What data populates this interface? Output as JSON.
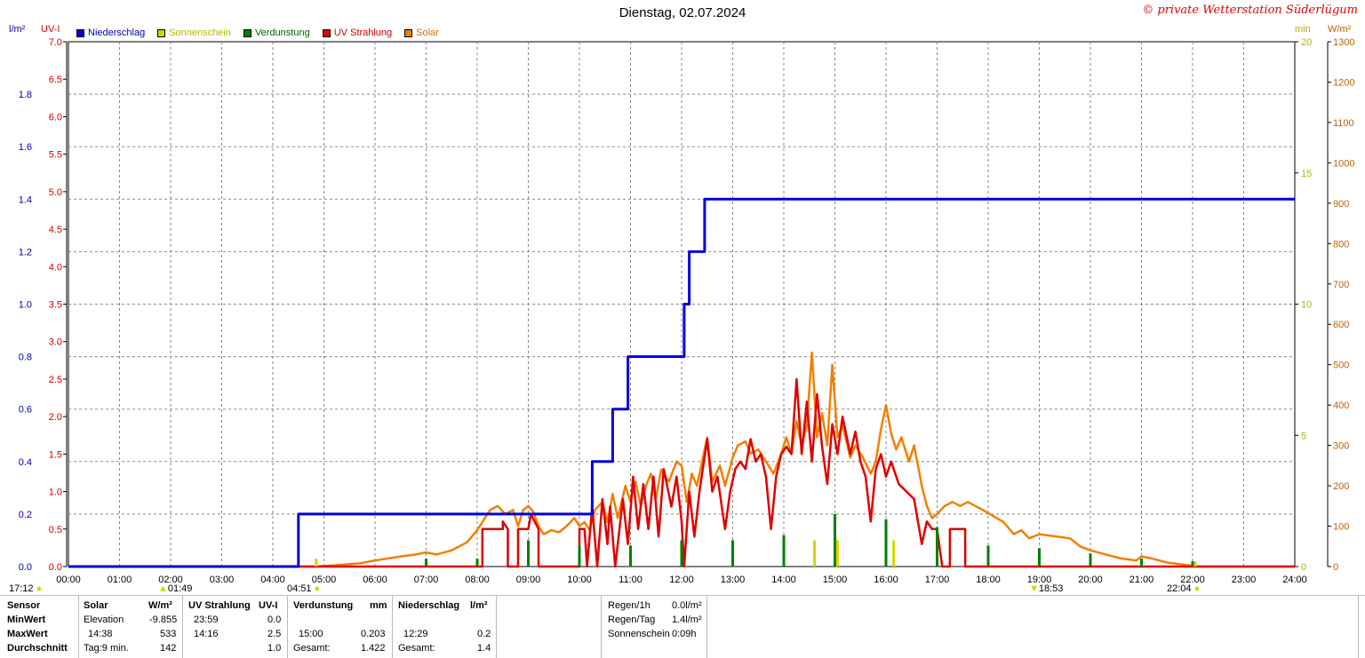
{
  "header": {
    "title": "Dienstag, 02.07.2024",
    "copyright": "© private Wetterstation Süderlügum"
  },
  "units": {
    "left1": "l/m²",
    "left2": "UV-I",
    "right1": "min",
    "right2": "W/m²"
  },
  "legend": [
    {
      "label": "Niederschlag",
      "color": "#0000dd"
    },
    {
      "label": "Sonnenschein",
      "color": "#d4d400"
    },
    {
      "label": "Verdunstung",
      "color": "#008000"
    },
    {
      "label": "UV Strahlung",
      "color": "#e00000"
    },
    {
      "label": "Solar",
      "color": "#f08000"
    }
  ],
  "markers": {
    "left_time": "17:12",
    "moon_rise": "01:49",
    "sunrise": "04:51",
    "sunset": "18:53",
    "moon_set": "22:04"
  },
  "chart_data": {
    "type": "line",
    "title": "Dienstag, 02.07.2024",
    "x_ticks": [
      "00:00",
      "01:00",
      "02:00",
      "03:00",
      "04:00",
      "05:00",
      "06:00",
      "07:00",
      "08:00",
      "09:00",
      "10:00",
      "11:00",
      "12:00",
      "13:00",
      "14:00",
      "15:00",
      "16:00",
      "17:00",
      "18:00",
      "19:00",
      "20:00",
      "21:00",
      "22:00",
      "23:00",
      "24:00"
    ],
    "x_range": [
      0,
      24
    ],
    "axes": {
      "rain": {
        "unit": "l/m²",
        "range": [
          0,
          2.0
        ],
        "ticks": [
          "0.0",
          "0.2",
          "0.4",
          "0.6",
          "0.8",
          "1.0",
          "1.2",
          "1.4",
          "1.6",
          "1.8"
        ],
        "tick_values": [
          0,
          0.2,
          0.4,
          0.6,
          0.8,
          1.0,
          1.2,
          1.4,
          1.6,
          1.8
        ]
      },
      "uv": {
        "unit": "UV-I",
        "range": [
          0,
          7.0
        ],
        "ticks": [
          "0.0",
          "0.5",
          "1.0",
          "1.5",
          "2.0",
          "2.5",
          "3.0",
          "3.5",
          "4.0",
          "4.5",
          "5.0",
          "5.5",
          "6.0",
          "6.5",
          "7.0"
        ],
        "tick_values": [
          0,
          0.5,
          1,
          1.5,
          2,
          2.5,
          3,
          3.5,
          4,
          4.5,
          5,
          5.5,
          6,
          6.5,
          7
        ]
      },
      "sun_min": {
        "unit": "min",
        "range": [
          0,
          20
        ],
        "ticks": [
          "0",
          "5",
          "10",
          "15",
          "20"
        ],
        "tick_values": [
          0,
          5,
          10,
          15,
          20
        ]
      },
      "solar": {
        "unit": "W/m²",
        "range": [
          0,
          1300
        ],
        "ticks": [
          "0",
          "100",
          "200",
          "300",
          "400",
          "500",
          "600",
          "700",
          "800",
          "900",
          "1000",
          "1100",
          "1200",
          "1300"
        ],
        "tick_values": [
          0,
          100,
          200,
          300,
          400,
          500,
          600,
          700,
          800,
          900,
          1000,
          1100,
          1200,
          1300
        ]
      }
    },
    "grid": true,
    "series": [
      {
        "name": "Niederschlag",
        "axis": "rain",
        "color": "#0000dd",
        "style": "step",
        "points": [
          [
            0,
            0
          ],
          [
            4.5,
            0
          ],
          [
            4.5,
            0.2
          ],
          [
            10.25,
            0.2
          ],
          [
            10.25,
            0.4
          ],
          [
            10.65,
            0.4
          ],
          [
            10.65,
            0.6
          ],
          [
            10.95,
            0.6
          ],
          [
            10.95,
            0.8
          ],
          [
            12.05,
            0.8
          ],
          [
            12.05,
            1.0
          ],
          [
            12.15,
            1.0
          ],
          [
            12.15,
            1.2
          ],
          [
            12.45,
            1.2
          ],
          [
            12.45,
            1.4
          ],
          [
            24,
            1.4
          ]
        ]
      },
      {
        "name": "Solar",
        "axis": "solar",
        "color": "#f08000",
        "style": "line",
        "points": [
          [
            0,
            0
          ],
          [
            4.8,
            0
          ],
          [
            5.2,
            3
          ],
          [
            5.7,
            8
          ],
          [
            6.0,
            15
          ],
          [
            6.5,
            25
          ],
          [
            6.8,
            30
          ],
          [
            7.0,
            35
          ],
          [
            7.2,
            30
          ],
          [
            7.5,
            40
          ],
          [
            7.8,
            60
          ],
          [
            8.0,
            90
          ],
          [
            8.1,
            110
          ],
          [
            8.25,
            140
          ],
          [
            8.4,
            150
          ],
          [
            8.55,
            130
          ],
          [
            8.7,
            140
          ],
          [
            8.8,
            100
          ],
          [
            8.9,
            140
          ],
          [
            9.0,
            150
          ],
          [
            9.1,
            135
          ],
          [
            9.2,
            100
          ],
          [
            9.3,
            80
          ],
          [
            9.45,
            90
          ],
          [
            9.6,
            85
          ],
          [
            9.75,
            100
          ],
          [
            9.9,
            120
          ],
          [
            10.0,
            100
          ],
          [
            10.1,
            110
          ],
          [
            10.2,
            90
          ],
          [
            10.3,
            140
          ],
          [
            10.45,
            160
          ],
          [
            10.55,
            110
          ],
          [
            10.65,
            180
          ],
          [
            10.75,
            120
          ],
          [
            10.9,
            200
          ],
          [
            11.0,
            160
          ],
          [
            11.1,
            210
          ],
          [
            11.2,
            150
          ],
          [
            11.3,
            200
          ],
          [
            11.4,
            230
          ],
          [
            11.5,
            170
          ],
          [
            11.6,
            240
          ],
          [
            11.75,
            210
          ],
          [
            11.9,
            260
          ],
          [
            12.0,
            250
          ],
          [
            12.1,
            160
          ],
          [
            12.2,
            230
          ],
          [
            12.3,
            200
          ],
          [
            12.4,
            260
          ],
          [
            12.5,
            320
          ],
          [
            12.6,
            210
          ],
          [
            12.75,
            250
          ],
          [
            12.85,
            200
          ],
          [
            13.0,
            270
          ],
          [
            13.1,
            300
          ],
          [
            13.25,
            310
          ],
          [
            13.35,
            280
          ],
          [
            13.5,
            290
          ],
          [
            13.65,
            260
          ],
          [
            13.8,
            230
          ],
          [
            13.95,
            280
          ],
          [
            14.05,
            320
          ],
          [
            14.15,
            280
          ],
          [
            14.25,
            360
          ],
          [
            14.35,
            300
          ],
          [
            14.45,
            350
          ],
          [
            14.55,
            530
          ],
          [
            14.65,
            320
          ],
          [
            14.75,
            380
          ],
          [
            14.85,
            300
          ],
          [
            14.95,
            500
          ],
          [
            15.05,
            320
          ],
          [
            15.15,
            350
          ],
          [
            15.3,
            270
          ],
          [
            15.4,
            300
          ],
          [
            15.55,
            270
          ],
          [
            15.7,
            230
          ],
          [
            15.8,
            260
          ],
          [
            15.9,
            340
          ],
          [
            16.0,
            400
          ],
          [
            16.1,
            330
          ],
          [
            16.2,
            290
          ],
          [
            16.3,
            320
          ],
          [
            16.45,
            260
          ],
          [
            16.55,
            300
          ],
          [
            16.7,
            200
          ],
          [
            16.8,
            150
          ],
          [
            16.9,
            120
          ],
          [
            17.0,
            130
          ],
          [
            17.15,
            150
          ],
          [
            17.3,
            160
          ],
          [
            17.45,
            150
          ],
          [
            17.6,
            160
          ],
          [
            17.75,
            150
          ],
          [
            17.9,
            140
          ],
          [
            18.1,
            125
          ],
          [
            18.3,
            110
          ],
          [
            18.5,
            80
          ],
          [
            18.65,
            90
          ],
          [
            18.8,
            70
          ],
          [
            19.0,
            80
          ],
          [
            19.3,
            75
          ],
          [
            19.6,
            70
          ],
          [
            19.8,
            50
          ],
          [
            20.0,
            40
          ],
          [
            20.3,
            30
          ],
          [
            20.6,
            20
          ],
          [
            20.9,
            15
          ],
          [
            21.0,
            25
          ],
          [
            21.2,
            20
          ],
          [
            21.5,
            10
          ],
          [
            21.8,
            5
          ],
          [
            22.1,
            0
          ],
          [
            24,
            0
          ]
        ]
      },
      {
        "name": "UV Strahlung",
        "axis": "uv",
        "color": "#e00000",
        "style": "line",
        "points": [
          [
            0,
            0
          ],
          [
            8.1,
            0
          ],
          [
            8.1,
            0.5
          ],
          [
            8.5,
            0.5
          ],
          [
            8.5,
            0.6
          ],
          [
            8.6,
            0.5
          ],
          [
            8.6,
            0
          ],
          [
            8.8,
            0
          ],
          [
            8.8,
            0.5
          ],
          [
            9.0,
            0.5
          ],
          [
            9.05,
            0.7
          ],
          [
            9.2,
            0.5
          ],
          [
            9.2,
            0
          ],
          [
            10.0,
            0
          ],
          [
            10.0,
            0.5
          ],
          [
            10.1,
            0.5
          ],
          [
            10.15,
            0
          ],
          [
            10.25,
            0.8
          ],
          [
            10.35,
            0
          ],
          [
            10.45,
            0.9
          ],
          [
            10.55,
            0.3
          ],
          [
            10.6,
            0.8
          ],
          [
            10.7,
            0
          ],
          [
            10.85,
            0.9
          ],
          [
            10.95,
            0.3
          ],
          [
            11.05,
            1.2
          ],
          [
            11.15,
            0.5
          ],
          [
            11.25,
            1.1
          ],
          [
            11.35,
            0.5
          ],
          [
            11.45,
            1.2
          ],
          [
            11.55,
            0.4
          ],
          [
            11.65,
            1.3
          ],
          [
            11.8,
            0.8
          ],
          [
            11.9,
            1.2
          ],
          [
            12.0,
            0.6
          ],
          [
            12.05,
            0
          ],
          [
            12.15,
            1.0
          ],
          [
            12.25,
            0.4
          ],
          [
            12.35,
            1.0
          ],
          [
            12.5,
            1.7
          ],
          [
            12.6,
            1.0
          ],
          [
            12.7,
            1.2
          ],
          [
            12.85,
            0.5
          ],
          [
            12.95,
            1.0
          ],
          [
            13.05,
            1.3
          ],
          [
            13.15,
            1.4
          ],
          [
            13.25,
            1.3
          ],
          [
            13.35,
            1.7
          ],
          [
            13.45,
            1.4
          ],
          [
            13.55,
            1.5
          ],
          [
            13.65,
            1.2
          ],
          [
            13.75,
            0.5
          ],
          [
            13.85,
            1.2
          ],
          [
            13.95,
            1.5
          ],
          [
            14.05,
            1.6
          ],
          [
            14.15,
            1.5
          ],
          [
            14.25,
            2.5
          ],
          [
            14.35,
            1.5
          ],
          [
            14.45,
            2.2
          ],
          [
            14.55,
            1.4
          ],
          [
            14.65,
            2.3
          ],
          [
            14.75,
            1.6
          ],
          [
            14.85,
            1.1
          ],
          [
            14.95,
            1.9
          ],
          [
            15.05,
            1.5
          ],
          [
            15.15,
            2.0
          ],
          [
            15.3,
            1.5
          ],
          [
            15.4,
            1.8
          ],
          [
            15.5,
            1.4
          ],
          [
            15.6,
            1.2
          ],
          [
            15.7,
            0.6
          ],
          [
            15.8,
            1.3
          ],
          [
            15.9,
            1.5
          ],
          [
            16.0,
            1.2
          ],
          [
            16.1,
            1.4
          ],
          [
            16.25,
            1.1
          ],
          [
            16.4,
            1.0
          ],
          [
            16.55,
            0.9
          ],
          [
            16.7,
            0.3
          ],
          [
            16.8,
            0.6
          ],
          [
            16.9,
            0.5
          ],
          [
            17.0,
            0.5
          ],
          [
            17.1,
            0
          ],
          [
            17.25,
            0
          ],
          [
            17.25,
            0.5
          ],
          [
            17.55,
            0.5
          ],
          [
            17.55,
            0
          ],
          [
            24,
            0
          ]
        ]
      },
      {
        "name": "Verdunstung",
        "axis": "sun_min",
        "color": "#008000",
        "style": "bars",
        "points": [
          [
            7.0,
            0.3
          ],
          [
            8.0,
            0.3
          ],
          [
            9.0,
            1.0
          ],
          [
            10.0,
            0.8
          ],
          [
            11.0,
            0.8
          ],
          [
            12.0,
            1.0
          ],
          [
            13.0,
            1.0
          ],
          [
            14.0,
            1.2
          ],
          [
            15.0,
            2.0
          ],
          [
            16.0,
            1.8
          ],
          [
            17.0,
            1.5
          ],
          [
            18.0,
            0.8
          ],
          [
            19.0,
            0.7
          ],
          [
            20.0,
            0.5
          ],
          [
            21.0,
            0.3
          ],
          [
            22.0,
            0.2
          ]
        ]
      },
      {
        "name": "Sonnenschein",
        "axis": "sun_min",
        "color": "#d4d400",
        "style": "bars",
        "points": [
          [
            4.85,
            0.3
          ],
          [
            14.6,
            1.0
          ],
          [
            15.05,
            1.0
          ],
          [
            16.15,
            1.0
          ],
          [
            22.05,
            0.2
          ]
        ]
      }
    ]
  },
  "stats": {
    "headers": {
      "sensor": "Sensor",
      "solar": "Solar",
      "solar_unit": "W/m²",
      "uv": "UV Strahlung",
      "uv_unit": "UV-I",
      "evap": "Verdunstung",
      "evap_unit": "mm",
      "rain": "Niederschlag",
      "rain_unit": "l/m²"
    },
    "rows": [
      {
        "label": "MinWert",
        "solar_a": "Elevation",
        "solar_b": "-9.855",
        "uv_a": "23:59",
        "uv_b": "0.0",
        "evap_a": "",
        "evap_b": "",
        "rain_a": "",
        "rain_b": ""
      },
      {
        "label": "MaxWert",
        "solar_a": "14:38",
        "solar_b": "533",
        "uv_a": "14:16",
        "uv_b": "2.5",
        "evap_a": "15:00",
        "evap_b": "0.203",
        "rain_a": "12:29",
        "rain_b": "0.2"
      },
      {
        "label": "Durchschnitt",
        "solar_a": "Tag:9 min.",
        "solar_b": "142",
        "uv_a": "",
        "uv_b": "1.0",
        "evap_a": "Gesamt:",
        "evap_b": "1.422",
        "rain_a": "Gesamt:",
        "rain_b": "1.4"
      }
    ],
    "summary": [
      {
        "label": "Regen/1h",
        "value": "0.0l/m²"
      },
      {
        "label": "Regen/Tag",
        "value": "1.4l/m²"
      },
      {
        "label": "Sonnenschein",
        "value": "0:09h"
      }
    ]
  }
}
